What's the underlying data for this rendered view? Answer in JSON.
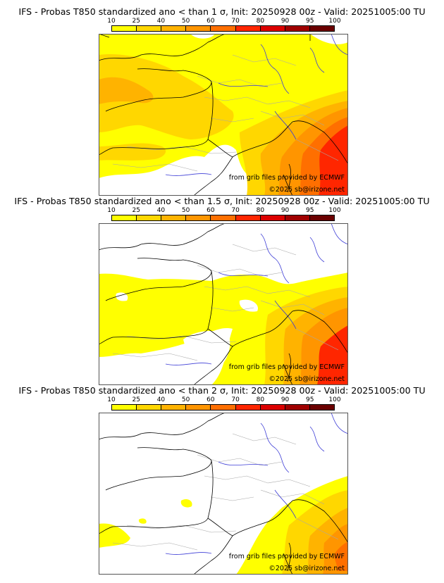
{
  "colorbar": {
    "ticks": [
      "10",
      "25",
      "40",
      "50",
      "60",
      "70",
      "80",
      "90",
      "95",
      "100"
    ],
    "colors": [
      "#ffff00",
      "#ffd700",
      "#ffb300",
      "#ff9500",
      "#ff6f00",
      "#ff2600",
      "#dc0000",
      "#a00000",
      "#6b0000"
    ]
  },
  "map_colors": {
    "land_outline": "#000000",
    "admin_borders": "#a8a8a8",
    "rivers": "#3d3dd6",
    "frame": "#555555"
  },
  "panels": [
    {
      "title": "IFS - Probas T850  standardized ano < than 1 σ, Init: 20250928 00z - Valid: 20251005:00 TU",
      "threshold": "1 σ",
      "credit_source": "from grib files provided by ECMWF",
      "credit_copyright": "©2025 sb@irizone.net"
    },
    {
      "title": "IFS - Probas T850  standardized ano < than 1.5 σ, Init: 20250928 00z - Valid: 20251005:00 TU",
      "threshold": "1.5 σ",
      "credit_source": "from grib files provided by ECMWF",
      "credit_copyright": "©2025 sb@irizone.net"
    },
    {
      "title": "IFS - Probas T850  standardized ano < than 2 σ, Init: 20250928 00z - Valid: 20251005:00 TU",
      "threshold": "2 σ",
      "credit_source": "from grib files provided by ECMWF",
      "credit_copyright": "©2025 sb@irizone.net"
    }
  ]
}
